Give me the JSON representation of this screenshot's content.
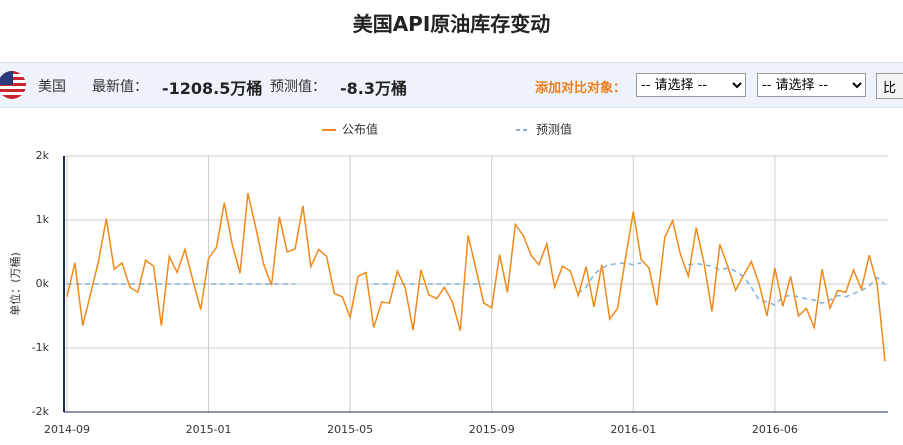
{
  "header": {
    "title": "美国API原油库存变动",
    "country": "美国",
    "latest_label": "最新值：",
    "latest_value": "-1208.5万桶",
    "forecast_label": "预测值：",
    "forecast_value": "-8.3万桶",
    "compare_label": "添加对比对象：",
    "select_1": "-- 请选择 --",
    "select_2": "-- 请选择 --",
    "button": "比"
  },
  "chart_data": {
    "type": "line",
    "y_label": "单位：(万桶)",
    "categories": [
      "2014-09",
      null,
      null,
      null,
      null,
      null,
      null,
      null,
      null,
      null,
      null,
      null,
      null,
      null,
      null,
      null,
      null,
      null,
      "2015-01",
      null,
      null,
      null,
      null,
      null,
      null,
      null,
      null,
      null,
      null,
      null,
      null,
      null,
      null,
      null,
      null,
      null,
      "2015-05",
      null,
      null,
      null,
      null,
      null,
      null,
      null,
      null,
      null,
      null,
      null,
      null,
      null,
      null,
      null,
      null,
      null,
      "2015-09",
      null,
      null,
      null,
      null,
      null,
      null,
      null,
      null,
      null,
      null,
      null,
      null,
      null,
      null,
      null,
      null,
      null,
      "2016-01",
      null,
      null,
      null,
      null,
      null,
      null,
      null,
      null,
      null,
      null,
      null,
      null,
      null,
      null,
      null,
      null,
      null,
      "2016-06",
      null,
      null,
      null,
      null,
      null,
      null,
      null,
      null,
      null,
      null,
      null,
      null,
      null,
      null
    ],
    "series": [
      {
        "name": "公布值",
        "color": "#f0891a",
        "values": [
          -200,
          330,
          -650,
          -150,
          350,
          1020,
          230,
          330,
          -50,
          -130,
          370,
          280,
          -650,
          430,
          180,
          540,
          60,
          -400,
          400,
          570,
          1270,
          620,
          170,
          1420,
          880,
          310,
          -20,
          1050,
          500,
          550,
          1220,
          270,
          540,
          430,
          -150,
          -200,
          -520,
          120,
          180,
          -680,
          -280,
          -300,
          200,
          -60,
          -720,
          220,
          -170,
          -230,
          -50,
          -280,
          -730,
          760,
          230,
          -300,
          -370,
          460,
          -130,
          930,
          760,
          450,
          300,
          630,
          -50,
          280,
          200,
          -180,
          270,
          -360,
          300,
          -550,
          -380,
          400,
          1130,
          380,
          250,
          -330,
          730,
          990,
          460,
          120,
          880,
          320,
          -430,
          620,
          280,
          -100,
          130,
          350,
          0,
          -500,
          250,
          -350,
          120,
          -500,
          -380,
          -680,
          230,
          -380,
          -100,
          -130,
          220,
          -80,
          450,
          0,
          -1208.5
        ]
      },
      {
        "name": "预测值",
        "color": "#7fb1e0",
        "dashed": true,
        "values": [
          0,
          0,
          0,
          0,
          0,
          0,
          0,
          0,
          0,
          0,
          0,
          0,
          0,
          0,
          0,
          0,
          0,
          0,
          0,
          0,
          0,
          0,
          0,
          0,
          0,
          0,
          0,
          0,
          0,
          0,
          null,
          null,
          null,
          null,
          null,
          null,
          null,
          null,
          null,
          0,
          0,
          0,
          0,
          0,
          0,
          0,
          0,
          0,
          0,
          0,
          0,
          0,
          0,
          0,
          null,
          null,
          null,
          null,
          null,
          null,
          null,
          null,
          null,
          null,
          null,
          -150,
          -50,
          150,
          250,
          300,
          320,
          330,
          300,
          330,
          null,
          null,
          null,
          null,
          null,
          300,
          320,
          300,
          280,
          220,
          250,
          200,
          120,
          -50,
          -250,
          -280,
          -330,
          -200,
          -180,
          -200,
          -230,
          -250,
          -300,
          -250,
          -180,
          -200,
          -150,
          -100,
          -30,
          100,
          -8.3
        ]
      }
    ],
    "ylim": [
      -2000,
      2000
    ],
    "yticks": [
      {
        "value": -2000,
        "label": "-2k"
      },
      {
        "value": -1000,
        "label": "-1k"
      },
      {
        "value": 0,
        "label": "0k"
      },
      {
        "value": 1000,
        "label": "1k"
      },
      {
        "value": 2000,
        "label": "2k"
      }
    ],
    "grid": true,
    "legend": "top"
  }
}
